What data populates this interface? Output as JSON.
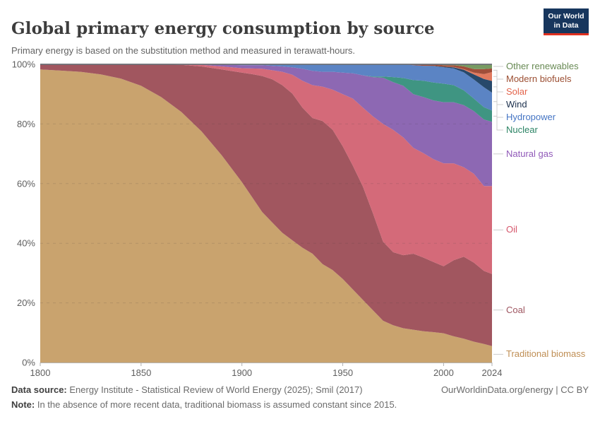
{
  "header": {
    "title": "Global primary energy consumption by source",
    "subtitle": "Primary energy is based on the substitution method and measured in terawatt-hours.",
    "logo": {
      "line1": "Our World",
      "line2": "in Data",
      "bg_color": "#17365d",
      "accent_color": "#e0301f"
    }
  },
  "chart_data": {
    "type": "area",
    "stacked": true,
    "normalized_percent": true,
    "title": "Global primary energy consumption by source",
    "xlabel": "",
    "ylabel": "",
    "xlim": [
      1800,
      2024
    ],
    "ylim": [
      0,
      100
    ],
    "grid": "dashed horizontal lines at 20/40/60/80, solid line at 100",
    "legend_position": "right",
    "yticks": [
      0,
      20,
      40,
      60,
      80,
      100
    ],
    "ytick_labels": [
      "0%",
      "20%",
      "40%",
      "60%",
      "80%",
      "100%"
    ],
    "xticks": [
      1800,
      1850,
      1900,
      1950,
      2000,
      2024
    ],
    "x": [
      1800,
      1810,
      1820,
      1830,
      1840,
      1850,
      1860,
      1870,
      1880,
      1890,
      1900,
      1905,
      1910,
      1915,
      1920,
      1925,
      1930,
      1935,
      1940,
      1945,
      1950,
      1955,
      1960,
      1965,
      1970,
      1975,
      1980,
      1985,
      1990,
      1995,
      2000,
      2005,
      2010,
      2015,
      2020,
      2024
    ],
    "series": [
      {
        "name": "Other renewables",
        "area_color": "#789b62",
        "label_color": "#688a54",
        "values": [
          0,
          0,
          0,
          0,
          0,
          0,
          0,
          0,
          0,
          0,
          0,
          0,
          0,
          0,
          0,
          0,
          0,
          0,
          0,
          0,
          0,
          0,
          0,
          0,
          0,
          0,
          0,
          0,
          0,
          0,
          0.3,
          0.3,
          0.7,
          1.6,
          1.6,
          1.4
        ]
      },
      {
        "name": "Modern biofuels",
        "area_color": "#a04e3a",
        "label_color": "#9c4f33",
        "values": [
          0,
          0,
          0,
          0,
          0,
          0,
          0,
          0,
          0,
          0,
          0,
          0,
          0,
          0,
          0,
          0,
          0,
          0,
          0,
          0,
          0,
          0,
          0,
          0,
          0,
          0,
          0,
          0.3,
          0.5,
          0.5,
          0.5,
          0.6,
          0.9,
          1.2,
          1.7,
          1.2
        ]
      },
      {
        "name": "Solar",
        "area_color": "#e17a5f",
        "label_color": "#e3644b",
        "values": [
          0,
          0,
          0,
          0,
          0,
          0,
          0,
          0,
          0,
          0,
          0,
          0,
          0,
          0,
          0,
          0,
          0,
          0,
          0,
          0,
          0,
          0,
          0,
          0,
          0,
          0,
          0,
          0,
          0,
          0,
          0,
          0.1,
          0.2,
          0.6,
          1.6,
          3.0
        ]
      },
      {
        "name": "Wind",
        "area_color": "#27496b",
        "label_color": "#1c304d",
        "values": [
          0,
          0,
          0,
          0,
          0,
          0,
          0,
          0,
          0,
          0,
          0,
          0,
          0,
          0,
          0,
          0,
          0,
          0,
          0,
          0,
          0,
          0,
          0,
          0,
          0,
          0,
          0,
          0,
          0,
          0.1,
          0.2,
          0.4,
          0.9,
          1.7,
          2.8,
          3.9
        ]
      },
      {
        "name": "Hydropower",
        "area_color": "#5b84c4",
        "label_color": "#4575c4",
        "values": [
          0,
          0,
          0,
          0,
          0,
          0,
          0,
          0,
          0,
          0.1,
          0.3,
          0.3,
          0.3,
          0.5,
          0.7,
          1.0,
          1.5,
          2.2,
          2.5,
          2.5,
          2.8,
          3.0,
          3.7,
          4.1,
          4.1,
          4.3,
          4.6,
          5.0,
          5.0,
          5.5,
          5.5,
          5.6,
          6.0,
          6.4,
          6.7,
          6.0
        ]
      },
      {
        "name": "Nuclear",
        "area_color": "#3f9582",
        "label_color": "#2c8465",
        "values": [
          0,
          0,
          0,
          0,
          0,
          0,
          0,
          0,
          0,
          0,
          0,
          0,
          0,
          0,
          0,
          0,
          0,
          0,
          0,
          0,
          0,
          0,
          0,
          0.2,
          0.4,
          1.7,
          2.6,
          4.7,
          5.5,
          6.0,
          6.2,
          5.7,
          5.0,
          4.2,
          4.1,
          3.8
        ]
      },
      {
        "name": "Natural gas",
        "area_color": "#8d68b3",
        "label_color": "#9059b8",
        "values": [
          0,
          0,
          0,
          0,
          0,
          0,
          0,
          0,
          0.2,
          0.6,
          1.0,
          1.1,
          1.2,
          1.5,
          1.8,
          2.5,
          4.0,
          4.8,
          5.0,
          6.0,
          7.2,
          8.5,
          10.8,
          13.2,
          15.5,
          16.0,
          17.3,
          18.0,
          18.8,
          19.7,
          20.5,
          20.5,
          20.8,
          21.0,
          22.3,
          21.5
        ]
      },
      {
        "name": "Oil",
        "area_color": "#d46a79",
        "label_color": "#d6566b",
        "values": [
          0,
          0,
          0,
          0,
          0,
          0,
          0,
          0.2,
          0.5,
          1.0,
          1.5,
          1.9,
          2.4,
          3.0,
          4.5,
          6.3,
          9.0,
          11.0,
          11.5,
          13.5,
          17.5,
          22.5,
          26.5,
          32.5,
          39.5,
          41.0,
          39.5,
          35.5,
          35.0,
          34.5,
          34.5,
          32.5,
          30.0,
          29.8,
          28.5,
          29.5
        ]
      },
      {
        "name": "Coal",
        "area_color": "#a1565f",
        "label_color": "#9e5560",
        "values": [
          1.7,
          2.1,
          2.5,
          3.4,
          4.8,
          7.2,
          11.0,
          15.8,
          21.8,
          28.8,
          36.7,
          41.2,
          45.6,
          48.0,
          49.5,
          49.2,
          47.0,
          45.5,
          48.0,
          47.0,
          44.5,
          41.5,
          38.0,
          32.5,
          26.5,
          24.5,
          24.5,
          25.5,
          24.7,
          23.5,
          22.5,
          25.5,
          27.5,
          26.5,
          24.5,
          24.2
        ]
      },
      {
        "name": "Traditional biomass",
        "area_color": "#c9a36e",
        "label_color": "#bf8e54",
        "values": [
          98.3,
          97.9,
          97.5,
          96.6,
          95.2,
          92.8,
          89.0,
          84.0,
          77.5,
          69.5,
          60.5,
          55.5,
          50.5,
          47.0,
          43.5,
          41.0,
          38.5,
          36.5,
          33.0,
          31.0,
          28.0,
          24.5,
          21.0,
          17.5,
          14.0,
          12.5,
          11.5,
          11.0,
          10.5,
          10.2,
          9.8,
          8.8,
          8.0,
          7.0,
          6.2,
          5.5
        ]
      }
    ]
  },
  "footer": {
    "source_label": "Data source:",
    "source_text": " Energy Institute - Statistical Review of World Energy (2025); Smil (2017)",
    "note_label": "Note:",
    "note_text": " In the absence of more recent data, traditional biomass is assumed constant since 2015.",
    "link": "OurWorldinData.org/energy | CC BY"
  }
}
